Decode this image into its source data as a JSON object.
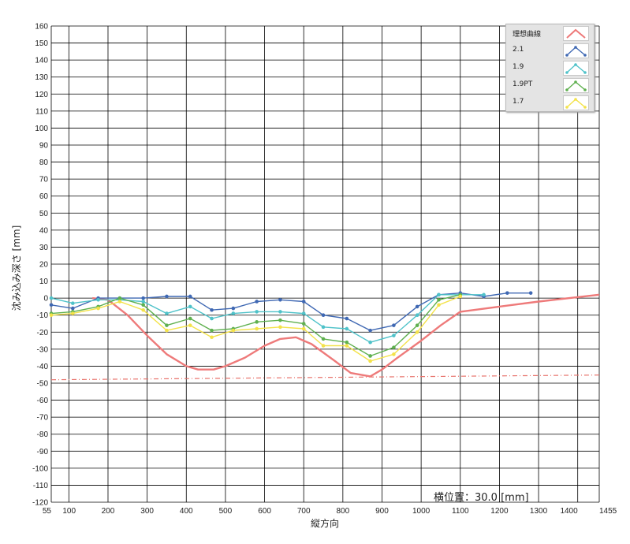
{
  "chart_data": {
    "type": "line",
    "xlabel": "縦方向",
    "ylabel": "沈み込み深さ [mm]",
    "annotation": "横位置：30.0 [mm]",
    "xlim": [
      55,
      1455
    ],
    "ylim": [
      -120,
      160
    ],
    "grid": true,
    "legend_position": "top-right",
    "x_ticks": [
      55,
      100,
      200,
      300,
      400,
      500,
      600,
      700,
      800,
      900,
      1000,
      1100,
      1200,
      1300,
      1400,
      1455
    ],
    "x_tick_labels": [
      "55",
      "100",
      "200",
      "300",
      "400",
      "500",
      "600",
      "700",
      "800",
      "900",
      "1000",
      "1100",
      "1200",
      "1300",
      "1400",
      "1455"
    ],
    "y_ticks": [
      -120,
      -110,
      -100,
      -90,
      -80,
      -70,
      -60,
      -50,
      -40,
      -30,
      -20,
      -10,
      0,
      10,
      20,
      30,
      40,
      50,
      60,
      70,
      80,
      90,
      100,
      110,
      120,
      130,
      140,
      150,
      160
    ],
    "reference_line": {
      "y": -48,
      "color": "#e8736c"
    },
    "series": [
      {
        "name": "理想曲線",
        "color": "#ee7a7a",
        "markers": false,
        "x": [
          160,
          200,
          250,
          300,
          350,
          400,
          430,
          470,
          500,
          550,
          600,
          640,
          680,
          720,
          780,
          820,
          870,
          900,
          940,
          1000,
          1050,
          1100,
          1200,
          1300,
          1455
        ],
        "y": [
          0,
          -1,
          -10,
          -22,
          -33,
          -40,
          -42,
          -42,
          -40,
          -35,
          -28,
          -24,
          -23,
          -27,
          -37,
          -44,
          -46,
          -42,
          -35,
          -25,
          -16,
          -8,
          -5,
          -2,
          2
        ]
      },
      {
        "name": "2.1",
        "color": "#3f68b3",
        "markers": true,
        "x": [
          55,
          110,
          175,
          230,
          290,
          350,
          410,
          465,
          520,
          580,
          640,
          700,
          750,
          810,
          870,
          930,
          990,
          1045,
          1100,
          1160,
          1220,
          1280
        ],
        "y": [
          -4,
          -6,
          0,
          0,
          0,
          1,
          1,
          -7,
          -6,
          -2,
          -1,
          -2,
          -10,
          -12,
          -19,
          -16,
          -5,
          2,
          3,
          1,
          3,
          3
        ]
      },
      {
        "name": "1.9",
        "color": "#4fc2c9",
        "markers": true,
        "x": [
          55,
          110,
          175,
          230,
          290,
          350,
          410,
          465,
          520,
          580,
          640,
          700,
          750,
          810,
          870,
          930,
          990,
          1045,
          1100,
          1160
        ],
        "y": [
          0,
          -3,
          -1,
          -1,
          -2,
          -9,
          -5,
          -12,
          -9,
          -8,
          -8,
          -9,
          -17,
          -18,
          -26,
          -22,
          -10,
          2,
          2,
          2
        ]
      },
      {
        "name": "1.9PT",
        "color": "#5fb04f",
        "markers": true,
        "x": [
          55,
          110,
          175,
          230,
          290,
          350,
          410,
          465,
          520,
          580,
          640,
          700,
          750,
          810,
          870,
          930,
          990,
          1045,
          1100
        ],
        "y": [
          -9,
          -8,
          -5,
          0,
          -4,
          -16,
          -12,
          -19,
          -18,
          -14,
          -13,
          -15,
          -24,
          -26,
          -34,
          -29,
          -16,
          -1,
          2
        ]
      },
      {
        "name": "1.7",
        "color": "#f3e24a",
        "markers": true,
        "x": [
          55,
          110,
          175,
          230,
          290,
          350,
          410,
          465,
          520,
          580,
          640,
          700,
          750,
          810,
          870,
          930,
          990,
          1045,
          1100
        ],
        "y": [
          -10,
          -9,
          -6,
          -2,
          -7,
          -19,
          -16,
          -23,
          -19,
          -18,
          -17,
          -18,
          -28,
          -28,
          -37,
          -33,
          -20,
          -4,
          1
        ]
      }
    ]
  }
}
